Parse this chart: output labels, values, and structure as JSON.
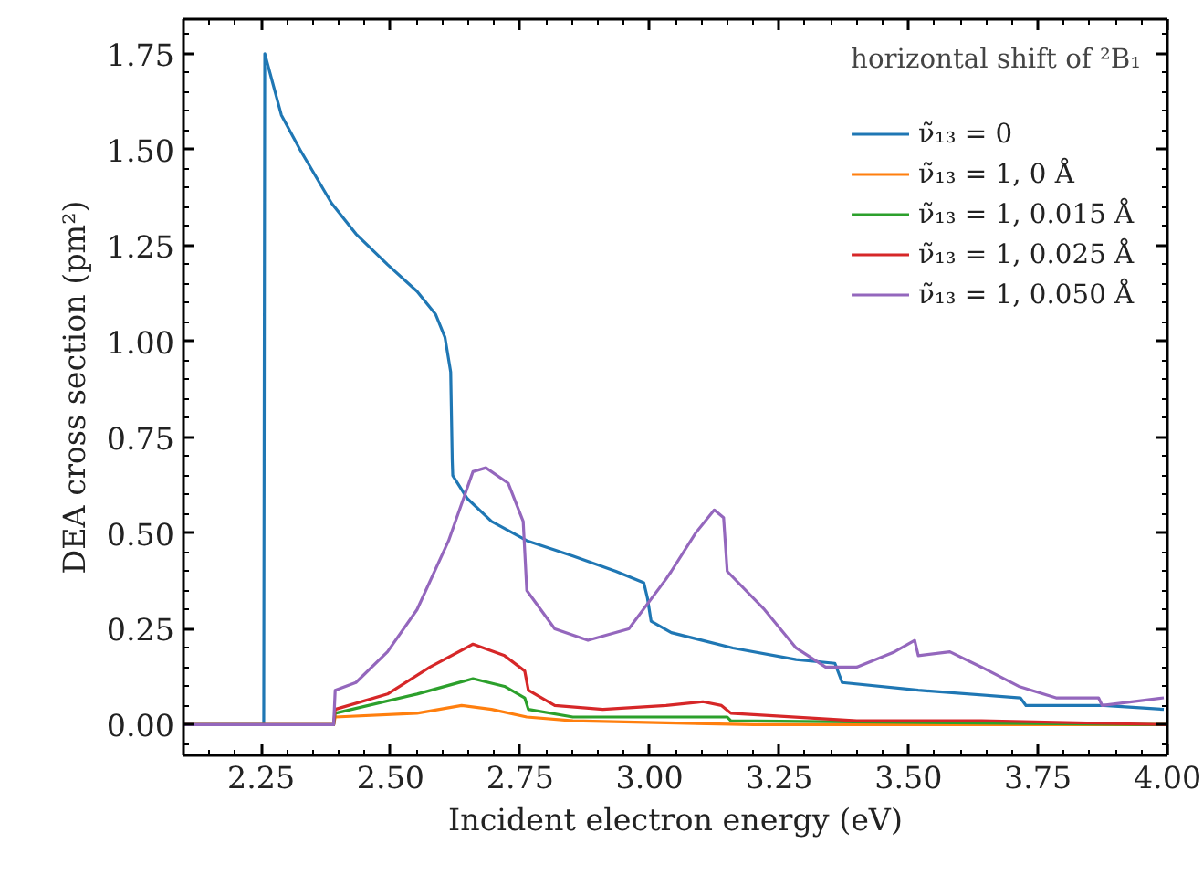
{
  "chart_data": {
    "type": "line",
    "xlabel": "Incident electron energy (eV)",
    "ylabel": "DEA cross section (pm²)",
    "legend_title": "horizontal shift of ²B₁",
    "legend": "top right",
    "grid": false,
    "line_style": "solid",
    "marker": "none",
    "xlim": [
      2.1,
      4.0
    ],
    "ylim": [
      -0.08,
      1.84
    ],
    "xticks": [
      {
        "value": 2.25,
        "label": "2.25"
      },
      {
        "value": 2.5,
        "label": "2.50"
      },
      {
        "value": 2.75,
        "label": "2.75"
      },
      {
        "value": 3.0,
        "label": "3.00"
      },
      {
        "value": 3.25,
        "label": "3.25"
      },
      {
        "value": 3.5,
        "label": "3.50"
      },
      {
        "value": 3.75,
        "label": "3.75"
      },
      {
        "value": 4.0,
        "label": "4.00"
      }
    ],
    "yticks": [
      {
        "value": 0,
        "label": "0.00"
      },
      {
        "value": 0.25,
        "label": "0.25"
      },
      {
        "value": 0.5,
        "label": "0.50"
      },
      {
        "value": 0.75,
        "label": "0.75"
      },
      {
        "value": 1.0,
        "label": "1.00"
      },
      {
        "value": 1.25,
        "label": "1.25"
      },
      {
        "value": 1.5,
        "label": "1.50"
      },
      {
        "value": 1.75,
        "label": "1.75"
      }
    ],
    "series": [
      {
        "name": "ν̃₁₃ = 0",
        "color": "#1f77b4",
        "x": [
          2.1,
          2.255,
          2.257,
          2.289,
          2.325,
          2.386,
          2.433,
          2.494,
          2.551,
          2.587,
          2.605,
          2.616,
          2.619,
          2.62,
          2.648,
          2.695,
          2.763,
          2.852,
          2.935,
          2.989,
          2.996,
          3.003,
          3.042,
          3.161,
          3.283,
          3.358,
          3.372,
          3.519,
          3.716,
          3.727,
          3.878,
          3.993
        ],
        "values": [
          0,
          0,
          1.75,
          1.59,
          1.5,
          1.36,
          1.28,
          1.2,
          1.13,
          1.07,
          1.01,
          0.92,
          0.69,
          0.65,
          0.59,
          0.53,
          0.48,
          0.44,
          0.4,
          0.37,
          0.33,
          0.27,
          0.24,
          0.2,
          0.17,
          0.16,
          0.11,
          0.09,
          0.07,
          0.05,
          0.05,
          0.04
        ]
      },
      {
        "name": "ν̃₁₃ = 1, 0 Å",
        "color": "#ff7f0e",
        "x": [
          2.1,
          2.39,
          2.393,
          2.551,
          2.637,
          2.695,
          2.763,
          2.852,
          3.2,
          4.0
        ],
        "values": [
          0,
          0,
          0.02,
          0.03,
          0.05,
          0.04,
          0.02,
          0.01,
          0.0,
          0.0
        ]
      },
      {
        "name": "ν̃₁₃ = 1, 0.015 Å",
        "color": "#2ca02c",
        "x": [
          2.1,
          2.39,
          2.393,
          2.551,
          2.659,
          2.72,
          2.759,
          2.766,
          2.852,
          3.032,
          3.15,
          3.157,
          4.0
        ],
        "values": [
          0,
          0,
          0.03,
          0.08,
          0.12,
          0.1,
          0.07,
          0.04,
          0.02,
          0.02,
          0.02,
          0.01,
          0.0
        ]
      },
      {
        "name": "ν̃₁₃ = 1, 0.025 Å",
        "color": "#d62728",
        "x": [
          2.1,
          2.39,
          2.393,
          2.494,
          2.576,
          2.659,
          2.72,
          2.759,
          2.766,
          2.817,
          2.91,
          3.032,
          3.103,
          3.139,
          3.157,
          3.4,
          3.641,
          4.0
        ],
        "values": [
          0,
          0,
          0.04,
          0.08,
          0.15,
          0.21,
          0.18,
          0.14,
          0.09,
          0.05,
          0.04,
          0.05,
          0.06,
          0.05,
          0.03,
          0.01,
          0.01,
          0.0
        ]
      },
      {
        "name": "ν̃₁₃ = 1, 0.050 Å",
        "color": "#9467bd",
        "x": [
          2.1,
          2.39,
          2.393,
          2.433,
          2.494,
          2.551,
          2.612,
          2.659,
          2.684,
          2.727,
          2.756,
          2.763,
          2.817,
          2.881,
          2.96,
          3.032,
          3.042,
          3.089,
          3.125,
          3.143,
          3.15,
          3.222,
          3.283,
          3.34,
          3.4,
          3.473,
          3.512,
          3.519,
          3.58,
          3.641,
          3.713,
          3.785,
          3.867,
          3.874,
          3.993
        ],
        "values": [
          0,
          0,
          0.09,
          0.11,
          0.19,
          0.3,
          0.48,
          0.66,
          0.67,
          0.63,
          0.53,
          0.35,
          0.25,
          0.22,
          0.25,
          0.38,
          0.4,
          0.5,
          0.56,
          0.54,
          0.4,
          0.3,
          0.2,
          0.15,
          0.15,
          0.19,
          0.22,
          0.18,
          0.19,
          0.15,
          0.1,
          0.07,
          0.07,
          0.05,
          0.07
        ]
      }
    ]
  }
}
